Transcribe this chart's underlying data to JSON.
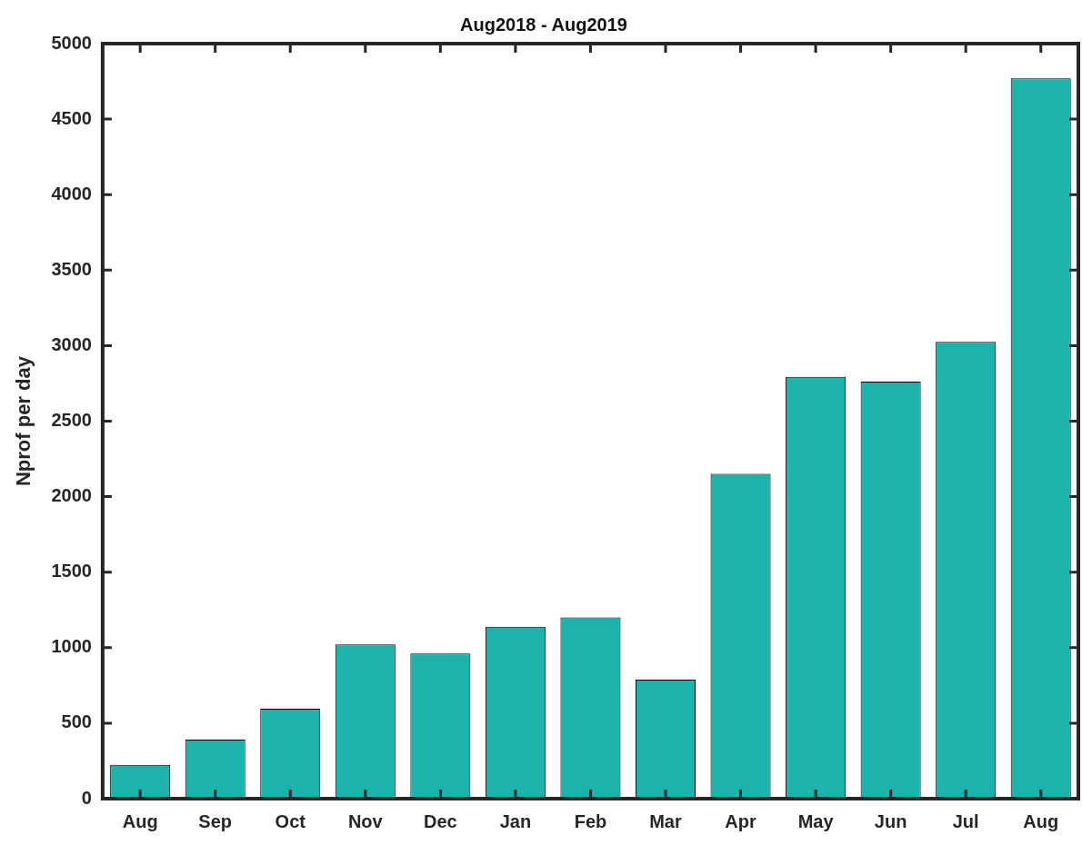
{
  "chart_data": {
    "type": "bar",
    "title": "Aug2018 - Aug2019",
    "ylabel": "Nprof per day",
    "categories": [
      "Aug",
      "Sep",
      "Oct",
      "Nov",
      "Dec",
      "Jan",
      "Feb",
      "Mar",
      "Apr",
      "May",
      "Jun",
      "Jul",
      "Aug"
    ],
    "values": [
      224,
      391,
      596,
      1022,
      961,
      1139,
      1201,
      788,
      2151,
      2794,
      2762,
      3025,
      4770
    ],
    "color": "#1db3ad",
    "ylim": [
      0,
      5000
    ],
    "yticks": [
      0,
      500,
      1000,
      1500,
      2000,
      2500,
      3000,
      3500,
      4000,
      4500,
      5000
    ],
    "grid": false,
    "legend": false
  }
}
